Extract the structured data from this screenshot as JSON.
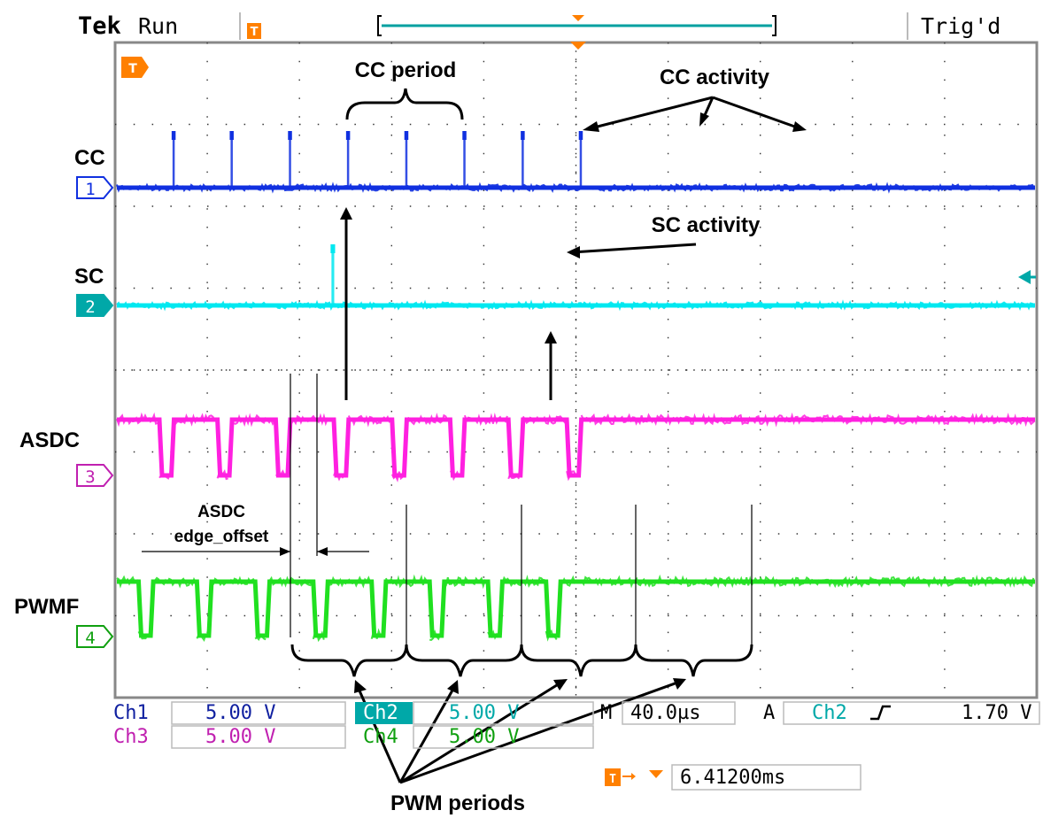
{
  "scope": {
    "brand": "Tek",
    "run_state": "Run",
    "trigger_state": "Trig'd",
    "trigger_marker": "T"
  },
  "colors": {
    "ch1": "#1030e0",
    "ch2": "#00e8f0",
    "ch3": "#ff20e0",
    "ch4": "#20e020",
    "ch2_readout": "#00a8a8",
    "ch3_readout": "#c020b0",
    "ch1_readout": "#1020a0",
    "ch4_readout": "#10a010",
    "trigger": "#ff8000",
    "grid": "#000000"
  },
  "channels": [
    {
      "id": "ch1",
      "number": "1",
      "label": "CC"
    },
    {
      "id": "ch2",
      "number": "2",
      "label": "SC"
    },
    {
      "id": "ch3",
      "number": "3",
      "label": "ASDC"
    },
    {
      "id": "ch4",
      "number": "4",
      "label": "PWMF"
    }
  ],
  "readout": {
    "ch1_name": "Ch1",
    "ch1_scale": "5.00 V",
    "ch2_name": "Ch2",
    "ch2_scale": "5.00 V",
    "ch3_name": "Ch3",
    "ch3_scale": "5.00 V",
    "ch4_name": "Ch4",
    "ch4_scale": "5.00 V",
    "timebase_prefix": "M",
    "timebase": "40.0µs",
    "acq_mode": "A",
    "trigger_source": "Ch2",
    "trigger_slope": "rising-edge-icon",
    "trigger_level": "1.70 V",
    "trigger_position": "6.41200ms"
  },
  "annotations": {
    "cc_period": "CC period",
    "cc_activity": "CC activity",
    "sc_activity": "SC activity",
    "asdc_edge_offset_line1": "ASDC",
    "asdc_edge_offset_line2": "edge_offset",
    "pwm_periods": "PWM periods"
  },
  "chart_data": {
    "type": "line",
    "title": "",
    "xlabel": "",
    "ylabel": "",
    "x_unit": "µs",
    "xlim": [
      0,
      400
    ],
    "grid": true,
    "divisions": {
      "x": 10,
      "y": 8
    },
    "series": [
      {
        "name": "CC",
        "pulse_times_us": [
          25.4,
          50.6,
          75.9,
          101.1,
          126.4,
          151.6,
          176.9,
          202.1
        ],
        "pulse_width_us": 0.6
      },
      {
        "name": "SC",
        "pulse_times_us": [
          94.5
        ],
        "pulse_width_us": 1.2
      },
      {
        "name": "ASDC",
        "low_intervals_us": [
          [
            19.2,
            24.4
          ],
          [
            44.4,
            49.6
          ],
          [
            69.7,
            74.9
          ],
          [
            94.9,
            100.2
          ],
          [
            120.2,
            125.4
          ],
          [
            145.4,
            150.6
          ],
          [
            170.7,
            175.9
          ],
          [
            196.0,
            201.2
          ]
        ]
      },
      {
        "name": "PWMF",
        "low_intervals_us": [
          [
            10.2,
            15.4
          ],
          [
            35.5,
            40.7
          ],
          [
            60.8,
            65.9
          ],
          [
            86.0,
            91.2
          ],
          [
            111.3,
            116.4
          ],
          [
            136.5,
            141.7
          ],
          [
            161.8,
            166.9
          ],
          [
            187.0,
            192.2
          ]
        ]
      }
    ]
  }
}
